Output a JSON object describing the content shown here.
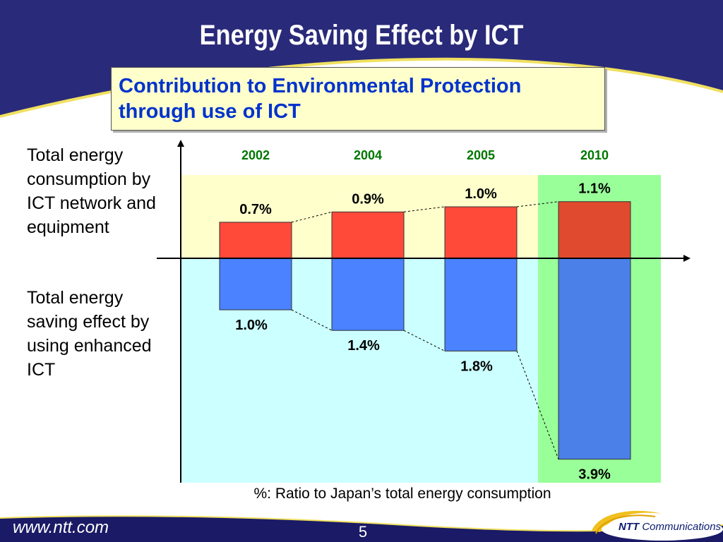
{
  "slide": {
    "title": "Energy Saving Effect by ICT",
    "subtitle": "Contribution to Environmental Protection through use of ICT",
    "label_top": "Total energy consumption by ICT network and equipment",
    "label_bottom": "Total energy saving effect by using enhanced ICT",
    "footnote": "%: Ratio to Japan’s total energy consumption",
    "footer_url": "www.ntt.com",
    "page_number": "5",
    "brand_name": "NTT",
    "brand_suffix": "Communications"
  },
  "colors": {
    "header": "#2a2a7a",
    "header_stripe": "#f0e060",
    "consumption_bar": "#ff4a3a",
    "saving_bar": "#4a82ff",
    "region_top": "#ffffcc",
    "region_bottom": "#ccffff",
    "highlight_2010": "#99ff99",
    "year_label": "#007700",
    "subtitle_text": "#0033cc"
  },
  "chart_data": {
    "type": "bar",
    "categories": [
      "2002",
      "2004",
      "2005",
      "2010"
    ],
    "series": [
      {
        "values": [
          0.7,
          0.9,
          1.0,
          1.1
        ],
        "labels": [
          "0.7%",
          "0.9%",
          "1.0%",
          "1.1%"
        ]
      },
      {
        "values": [
          1.0,
          1.4,
          1.8,
          3.9
        ],
        "labels": [
          "1.0%",
          "1.4%",
          "1.8%",
          "3.9%"
        ]
      }
    ],
    "unit": "%",
    "highlight_category": "2010"
  }
}
